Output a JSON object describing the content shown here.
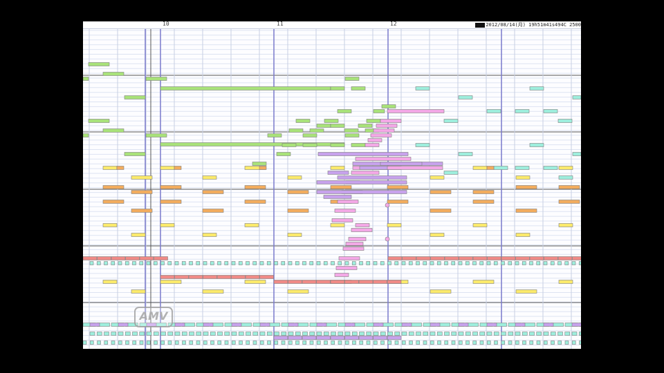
{
  "measures": [
    "10",
    "11",
    "12"
  ],
  "info_text": "2012/08/14(月) 19h51m41s494C 2500",
  "logo_text": "AMV",
  "colors": {
    "background": "#fdfdff",
    "lane_line": "#dde3f2",
    "beat_line": "#c8cfe3",
    "bar_line": "#7a7acc",
    "green": "#a9e27a",
    "cyan": "#9eeedd",
    "yellow": "#fbea6c",
    "orange": "#f2ac5e",
    "pink": "#f3a8e6",
    "purple": "#c7a2ec",
    "red": "#ef8a86",
    "outline": "#7f7f7f"
  }
}
